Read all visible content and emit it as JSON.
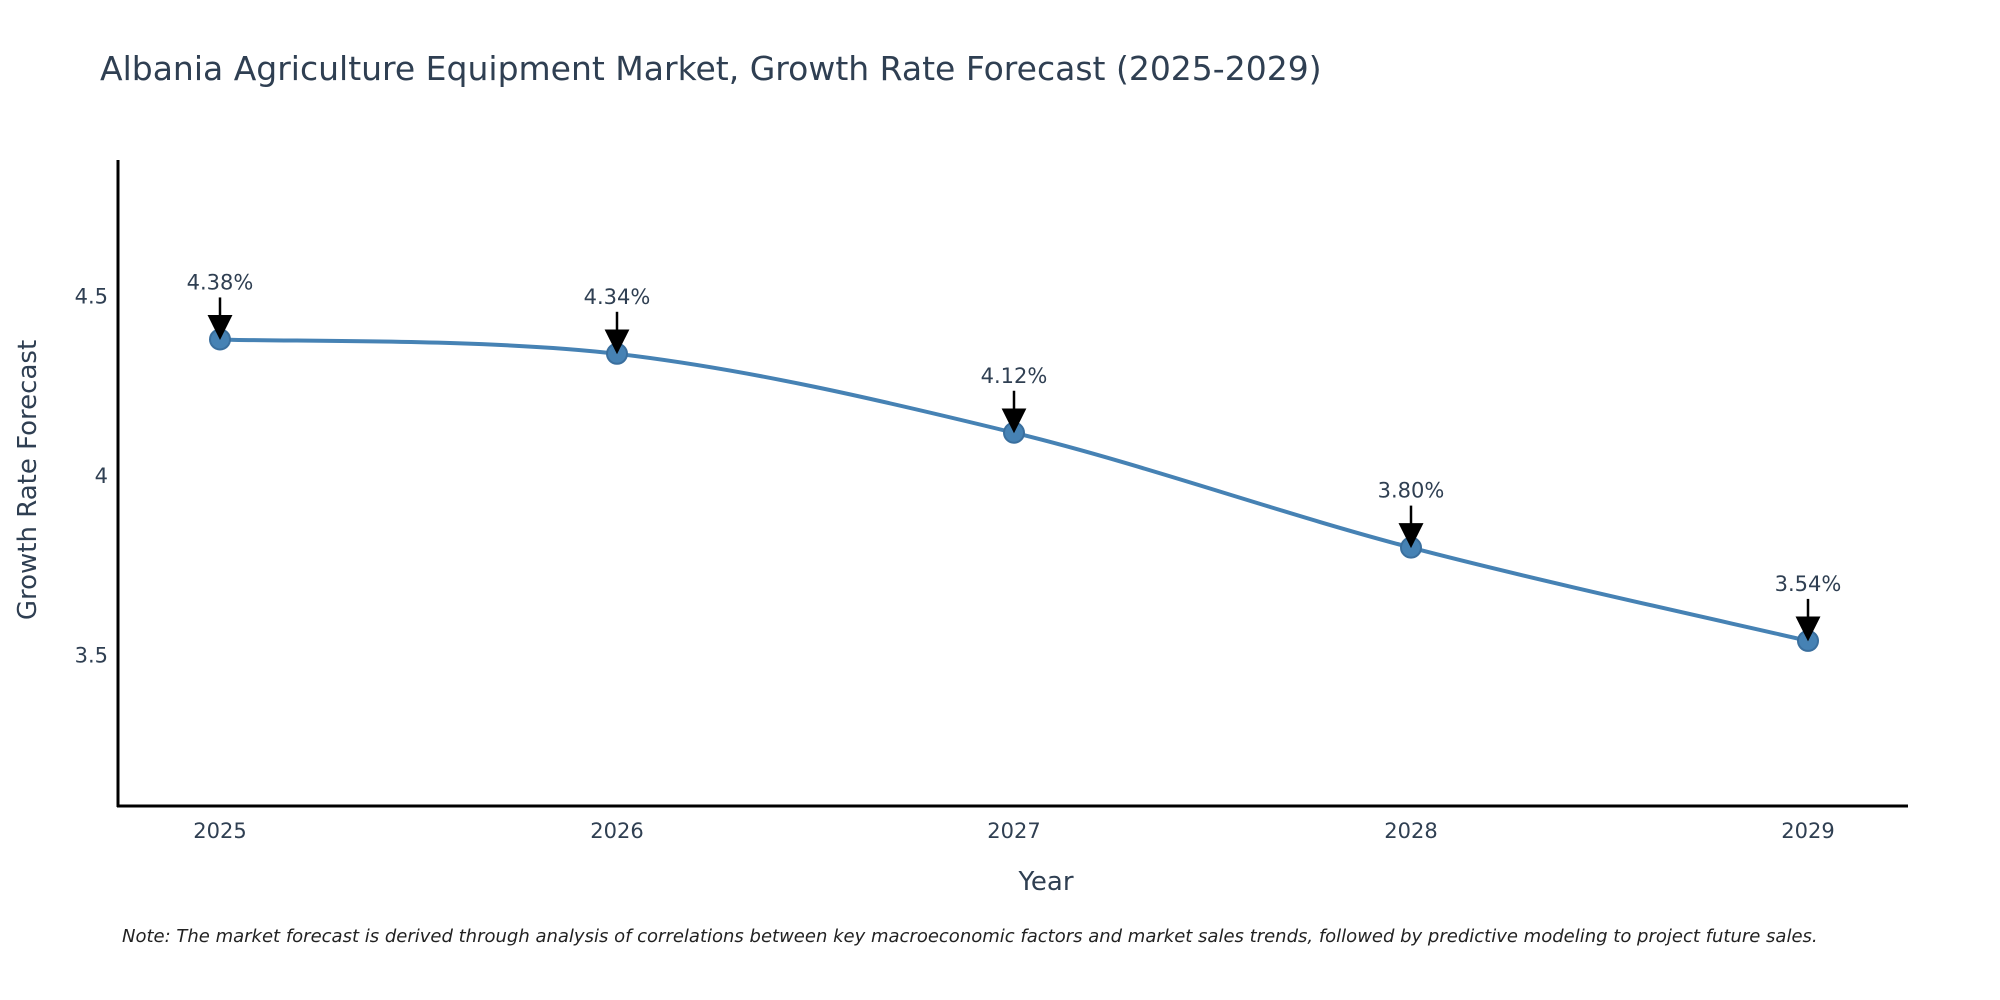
{
  "chart_data": {
    "type": "line",
    "title": "Albania Agriculture Equipment Market, Growth Rate Forecast (2025-2029)",
    "xlabel": "Year",
    "ylabel": "Growth Rate Forecast",
    "categories": [
      "2025",
      "2026",
      "2027",
      "2028",
      "2029"
    ],
    "series": [
      {
        "name": "Growth Rate Forecast",
        "values": [
          4.38,
          4.34,
          4.12,
          3.8,
          3.54
        ]
      }
    ],
    "data_labels": [
      "4.38%",
      "4.34%",
      "4.12%",
      "3.80%",
      "3.54%"
    ],
    "y_ticks": [
      3.5,
      4,
      4.5
    ],
    "y_tick_labels": [
      "3.5",
      "4",
      "4.5"
    ],
    "ylim": [
      3.08,
      4.88
    ],
    "grid": false,
    "line_color": "#4682b4",
    "marker_color": "#4682b4",
    "axis_color": "#000000",
    "text_color": "#2f3f52"
  },
  "note": "Note: The market forecast is derived through analysis of correlations between key macroeconomic factors and market sales trends, followed by predictive modeling to project future sales."
}
